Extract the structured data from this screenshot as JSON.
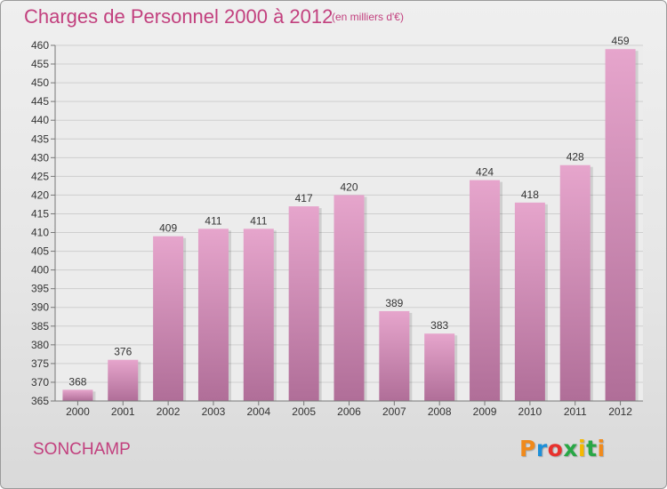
{
  "chart_data": {
    "type": "bar",
    "title": "Charges de Personnel 2000 à 2012",
    "subtitle": "(en milliers d'€)",
    "categories": [
      "2000",
      "2001",
      "2002",
      "2003",
      "2004",
      "2005",
      "2006",
      "2007",
      "2008",
      "2009",
      "2010",
      "2011",
      "2012"
    ],
    "values": [
      368,
      376,
      409,
      411,
      411,
      417,
      420,
      389,
      383,
      424,
      418,
      428,
      459
    ],
    "ylim": [
      365,
      460
    ],
    "yticks": [
      365,
      370,
      375,
      380,
      385,
      390,
      395,
      400,
      405,
      410,
      415,
      420,
      425,
      430,
      435,
      440,
      445,
      450,
      455,
      460
    ],
    "grid": true,
    "bar_color": "#d98bb8",
    "bar_color_dark": "#b56d98"
  },
  "footer": {
    "commune": "SONCHAMP",
    "logo": [
      "P",
      "r",
      "o",
      "x",
      "i",
      "t",
      "i"
    ]
  },
  "colors": {
    "accent": "#c2407e"
  }
}
